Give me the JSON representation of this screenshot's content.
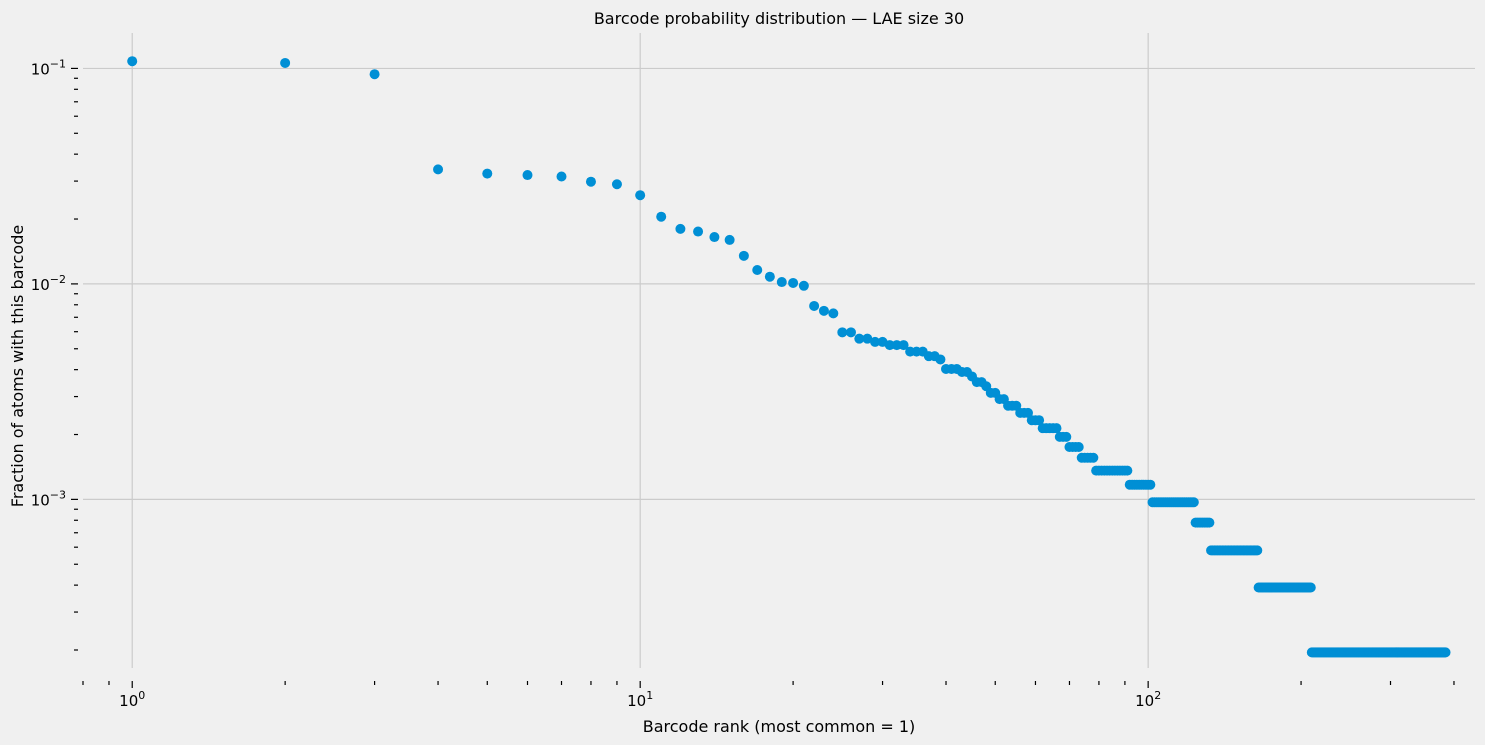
{
  "chart_data": {
    "type": "scatter",
    "title": "Barcode probability distribution — LAE size 30",
    "xlabel": "Barcode rank (most common = 1)",
    "ylabel": "Fraction of atoms with this barcode",
    "xscale": "log",
    "yscale": "log",
    "xlim": [
      0.8,
      440
    ],
    "ylim": [
      0.000165,
      0.146
    ],
    "grid": true,
    "marker_color": "#008fd5",
    "background_color": "#f0f0f0",
    "grid_color": "#cbcbcb",
    "x_ticks": [
      {
        "base": "10",
        "exp": "0",
        "value": 1
      },
      {
        "base": "10",
        "exp": "1",
        "value": 10
      },
      {
        "base": "10",
        "exp": "2",
        "value": 100
      }
    ],
    "y_ticks": [
      {
        "base": "10",
        "exp": "−1",
        "value": 0.1
      },
      {
        "base": "10",
        "exp": "−2",
        "value": 0.01
      },
      {
        "base": "10",
        "exp": "−3",
        "value": 0.001
      }
    ],
    "head_points": [
      [
        1,
        0.108
      ],
      [
        2,
        0.106
      ],
      [
        3,
        0.094
      ],
      [
        4,
        0.034
      ],
      [
        5,
        0.0325
      ],
      [
        6,
        0.032
      ],
      [
        7,
        0.0315
      ],
      [
        8,
        0.0298
      ],
      [
        9,
        0.029
      ],
      [
        10,
        0.0258
      ],
      [
        11,
        0.0205
      ],
      [
        12,
        0.018
      ],
      [
        13,
        0.0175
      ],
      [
        14,
        0.0165
      ],
      [
        15,
        0.016
      ],
      [
        16,
        0.0135
      ],
      [
        17,
        0.0116
      ],
      [
        18,
        0.0108
      ],
      [
        19,
        0.0102
      ],
      [
        20,
        0.0101
      ],
      [
        21,
        0.0098
      ],
      [
        22,
        0.0079
      ],
      [
        23,
        0.0075
      ],
      [
        24,
        0.0073
      ]
    ],
    "tail_groups": [
      {
        "from": 25,
        "to": 26,
        "y": 0.00596
      },
      {
        "from": 27,
        "to": 28,
        "y": 0.00557
      },
      {
        "from": 29,
        "to": 30,
        "y": 0.00538
      },
      {
        "from": 31,
        "to": 33,
        "y": 0.0052
      },
      {
        "from": 34,
        "to": 36,
        "y": 0.00485
      },
      {
        "from": 37,
        "to": 38,
        "y": 0.00462
      },
      {
        "from": 39,
        "to": 39,
        "y": 0.00446
      },
      {
        "from": 40,
        "to": 42,
        "y": 0.00403
      },
      {
        "from": 43,
        "to": 44,
        "y": 0.0039
      },
      {
        "from": 45,
        "to": 45,
        "y": 0.00372
      },
      {
        "from": 46,
        "to": 47,
        "y": 0.0035
      },
      {
        "from": 48,
        "to": 48,
        "y": 0.00335
      },
      {
        "from": 49,
        "to": 50,
        "y": 0.00312
      },
      {
        "from": 51,
        "to": 52,
        "y": 0.00292
      },
      {
        "from": 53,
        "to": 55,
        "y": 0.00272
      },
      {
        "from": 56,
        "to": 58,
        "y": 0.00252
      },
      {
        "from": 59,
        "to": 61,
        "y": 0.00233
      },
      {
        "from": 62,
        "to": 66,
        "y": 0.00214
      },
      {
        "from": 67,
        "to": 69,
        "y": 0.00195
      },
      {
        "from": 70,
        "to": 73,
        "y": 0.00175
      },
      {
        "from": 74,
        "to": 78,
        "y": 0.00156
      },
      {
        "from": 79,
        "to": 91,
        "y": 0.00136
      },
      {
        "from": 92,
        "to": 101,
        "y": 0.00117
      },
      {
        "from": 102,
        "to": 123,
        "y": 0.00097
      },
      {
        "from": 124,
        "to": 132,
        "y": 0.00078
      },
      {
        "from": 133,
        "to": 164,
        "y": 0.00058
      },
      {
        "from": 165,
        "to": 209,
        "y": 0.00039
      },
      {
        "from": 210,
        "to": 385,
        "y": 0.000195
      }
    ]
  }
}
